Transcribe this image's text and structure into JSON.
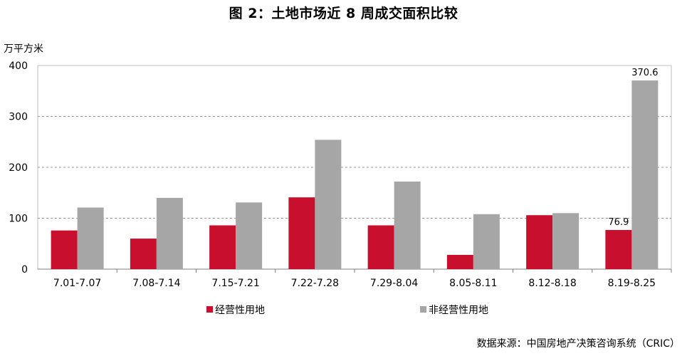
{
  "title": "图 2：土地市场近 8 周成交面积比较",
  "unit_label": "万平方米",
  "source": "数据来源：中国房地产决策咨询系统（CRIC）",
  "chart_data": {
    "type": "bar",
    "title": "图 2：土地市场近 8 周成交面积比较",
    "ylabel": "万平方米",
    "xlabel": "",
    "ylim": [
      0,
      400
    ],
    "yticks": [
      0,
      100,
      200,
      300,
      400
    ],
    "grid": true,
    "legend_position": "bottom",
    "categories": [
      "7.01-7.07",
      "7.08-7.14",
      "7.15-7.21",
      "7.22-7.28",
      "7.29-8.04",
      "8.05-8.11",
      "8.12-8.18",
      "8.19-8.25"
    ],
    "series": [
      {
        "name": "经营性用地",
        "color": "#c8102e",
        "values": [
          76,
          60,
          86,
          141,
          86,
          28,
          106,
          76.9
        ],
        "labels": [
          "",
          "",
          "",
          "",
          "",
          "",
          "",
          "76.9"
        ]
      },
      {
        "name": "非经营性用地",
        "color": "#a6a6a6",
        "values": [
          121,
          140,
          131,
          254,
          172,
          108,
          110,
          370.6
        ],
        "labels": [
          "",
          "",
          "",
          "",
          "",
          "",
          "",
          "370.6"
        ]
      }
    ]
  }
}
